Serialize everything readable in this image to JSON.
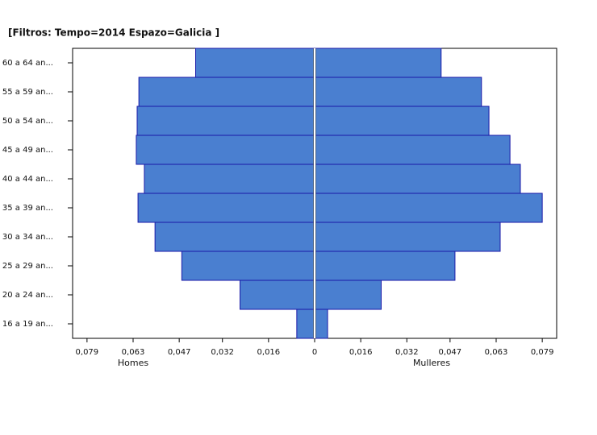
{
  "chart_data": {
    "type": "pyramid",
    "title": "[Filtros: Tempo=2014 Espazo=Galicia ]",
    "categories": [
      "16 a 19 an...",
      "20 a 24 an...",
      "25 a 29 an...",
      "30 a 34 an...",
      "35 a 39 an...",
      "40 a 44 an...",
      "45 a 49 an...",
      "50 a 54 an...",
      "55 a 59 an...",
      "60 a 64 an..."
    ],
    "series": [
      {
        "name": "Homes",
        "color": "#4a7fd0",
        "values": [
          -0.0062,
          -0.0259,
          -0.0461,
          -0.0554,
          -0.0613,
          -0.0591,
          -0.0619,
          -0.0616,
          -0.061,
          -0.0413
        ]
      },
      {
        "name": "Mulleres",
        "color": "#4a7fd0",
        "values": [
          0.0045,
          0.0231,
          0.0487,
          0.0644,
          0.079,
          0.0714,
          0.0678,
          0.0605,
          0.0579,
          0.0439
        ]
      }
    ],
    "edge_color": "#1a1aa8",
    "xlim": [
      -0.084,
      0.084
    ],
    "xticks": [
      {
        "value": -0.079,
        "label": "0,079"
      },
      {
        "value": -0.063,
        "label": "0,063"
      },
      {
        "value": -0.047,
        "label": "0,047"
      },
      {
        "value": -0.032,
        "label": "0,032"
      },
      {
        "value": -0.016,
        "label": "0,016"
      },
      0,
      {
        "value": 0.016,
        "label": "0,016"
      },
      {
        "value": 0.032,
        "label": "0,032"
      },
      {
        "value": 0.047,
        "label": "0,047"
      },
      {
        "value": 0.063,
        "label": "0,063"
      },
      {
        "value": 0.079,
        "label": "0,079"
      }
    ]
  }
}
